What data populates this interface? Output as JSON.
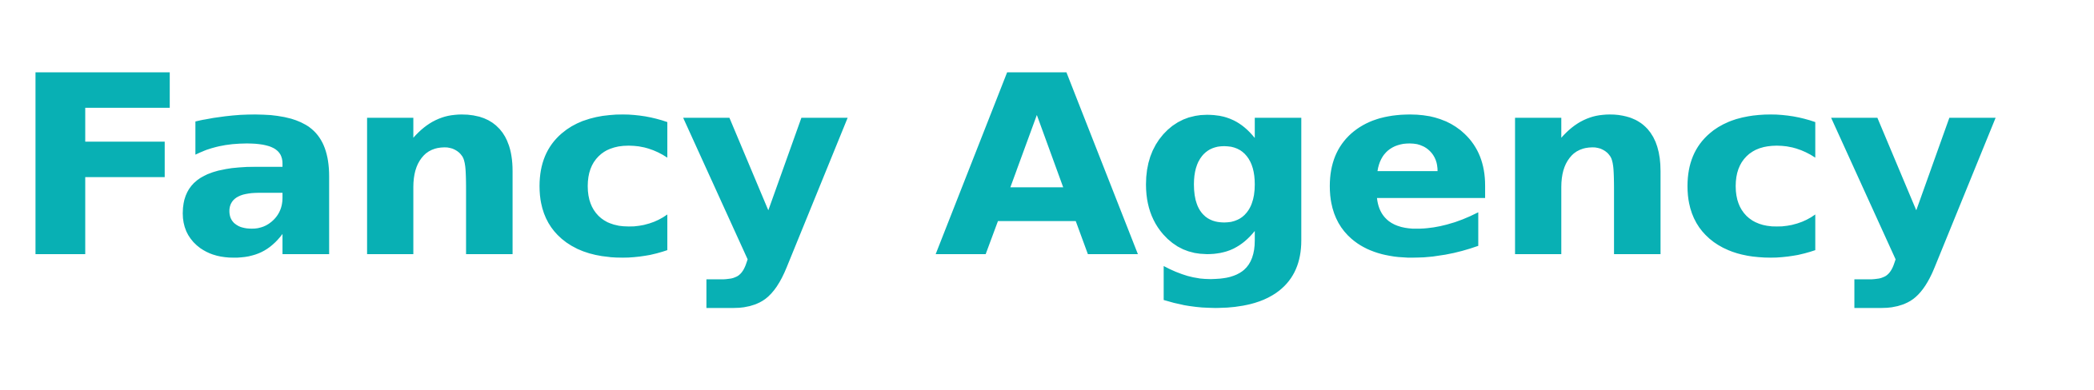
{
  "logo": {
    "text": "Fancy Agency",
    "color": "#08b0b4"
  },
  "colors": {
    "background": "#ffffff"
  }
}
